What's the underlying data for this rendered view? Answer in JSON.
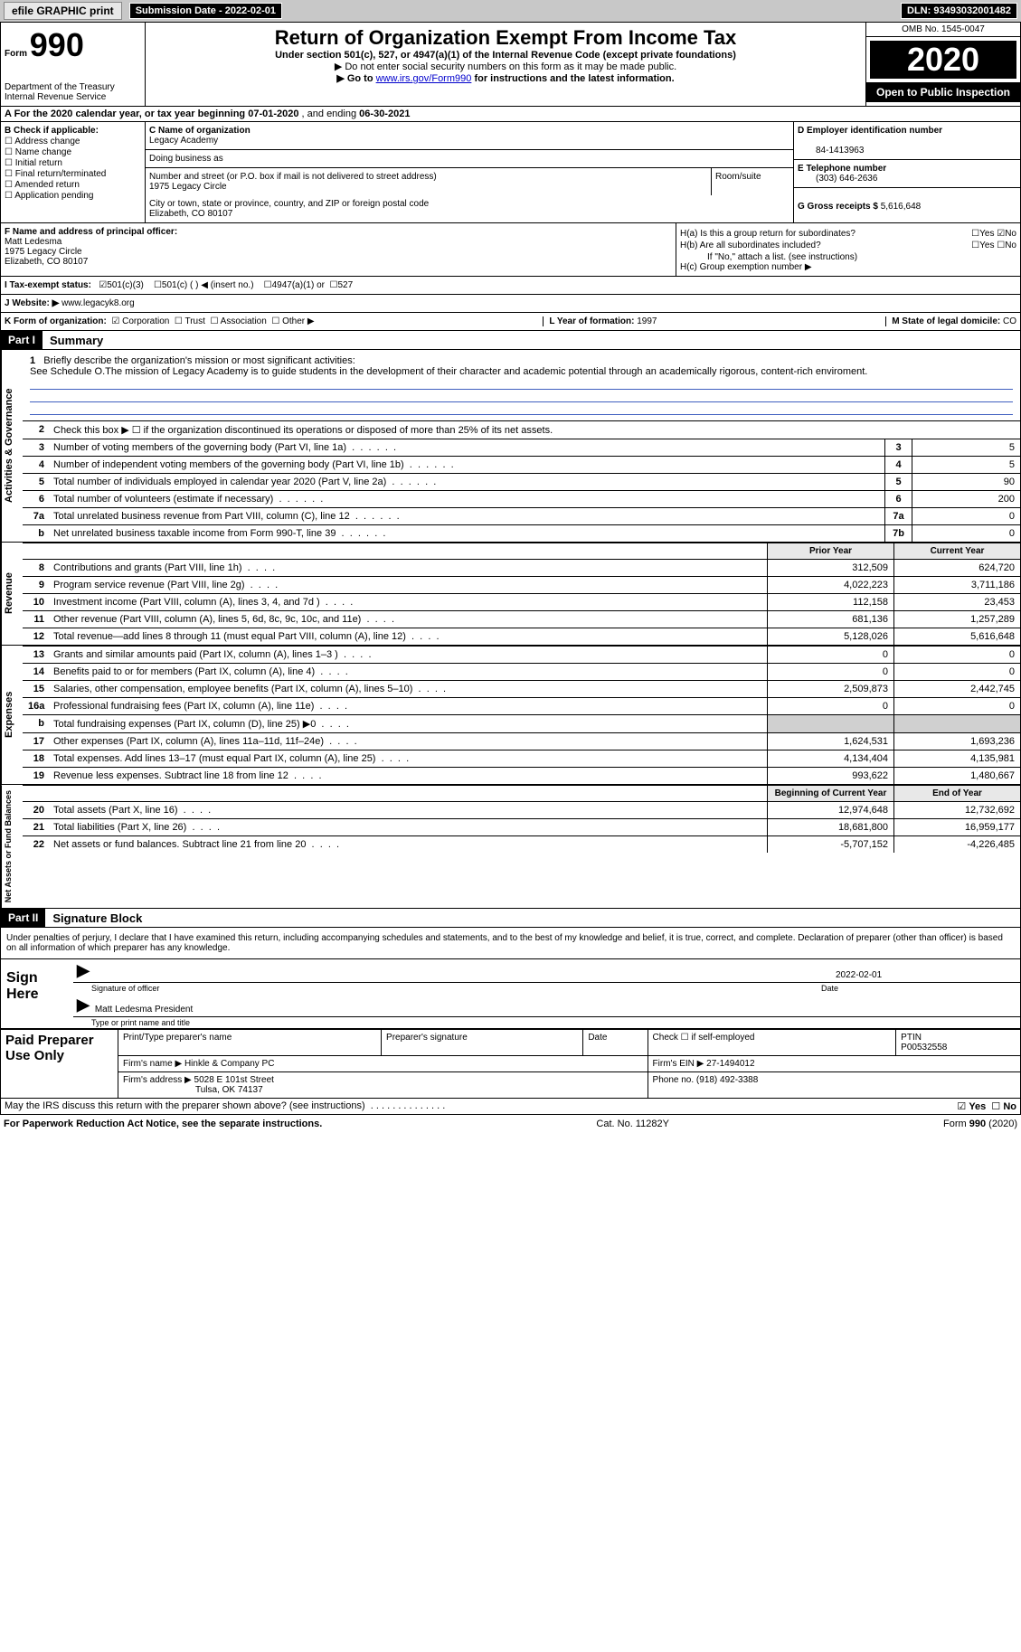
{
  "top": {
    "efile": "efile GRAPHIC print",
    "sub_label": "Submission Date - 2022-02-01",
    "dln": "DLN: 93493032001482"
  },
  "header": {
    "form_label": "Form",
    "form_num": "990",
    "dept": "Department of the Treasury",
    "irs": "Internal Revenue Service",
    "title": "Return of Organization Exempt From Income Tax",
    "subtitle": "Under section 501(c), 527, or 4947(a)(1) of the Internal Revenue Code (except private foundations)",
    "line1": "▶ Do not enter social security numbers on this form as it may be made public.",
    "line2_pre": "▶ Go to ",
    "line2_link": "www.irs.gov/Form990",
    "line2_post": " for instructions and the latest information.",
    "omb": "OMB No. 1545-0047",
    "year": "2020",
    "open": "Open to Public Inspection"
  },
  "rowA": {
    "text_pre": "A For the 2020 calendar year, or tax year beginning ",
    "begin": "07-01-2020",
    "mid": " , and ending ",
    "end": "06-30-2021"
  },
  "B": {
    "label": "B Check if applicable:",
    "opts": [
      "Address change",
      "Name change",
      "Initial return",
      "Final return/terminated",
      "Amended return",
      "Application pending"
    ]
  },
  "C": {
    "name_lbl": "C Name of organization",
    "name": "Legacy Academy",
    "dba_lbl": "Doing business as",
    "dba": "",
    "street_lbl": "Number and street (or P.O. box if mail is not delivered to street address)",
    "street": "1975 Legacy Circle",
    "room_lbl": "Room/suite",
    "city_lbl": "City or town, state or province, country, and ZIP or foreign postal code",
    "city": "Elizabeth, CO  80107"
  },
  "D": {
    "lbl": "D Employer identification number",
    "val": "84-1413963"
  },
  "E": {
    "lbl": "E Telephone number",
    "val": "(303) 646-2636"
  },
  "G": {
    "lbl": "G Gross receipts $ ",
    "val": "5,616,648"
  },
  "F": {
    "lbl": "F Name and address of principal officer:",
    "name": "Matt Ledesma",
    "street": "1975 Legacy Circle",
    "city": "Elizabeth, CO  80107"
  },
  "H": {
    "a": "H(a)  Is this a group return for subordinates?",
    "a_yes": "Yes",
    "a_no": "No",
    "b": "H(b)  Are all subordinates included?",
    "b_yes": "Yes",
    "b_no": "No",
    "b_note": "If \"No,\" attach a list. (see instructions)",
    "c": "H(c)  Group exemption number ▶"
  },
  "I": {
    "lbl": "I  Tax-exempt status:",
    "o1": "501(c)(3)",
    "o2": "501(c) (  ) ◀ (insert no.)",
    "o3": "4947(a)(1) or",
    "o4": "527"
  },
  "J": {
    "lbl": "J  Website: ▶ ",
    "val": "www.legacyk8.org"
  },
  "K": {
    "lbl": "K Form of organization:",
    "o1": "Corporation",
    "o2": "Trust",
    "o3": "Association",
    "o4": "Other ▶"
  },
  "L": {
    "lbl": "L Year of formation: ",
    "val": "1997"
  },
  "M": {
    "lbl": "M State of legal domicile: ",
    "val": "CO"
  },
  "part1": {
    "hdr": "Part I",
    "title": "Summary"
  },
  "mission": {
    "lbl": "Briefly describe the organization's mission or most significant activities:",
    "text": "See Schedule O.The mission of Legacy Academy is to guide students in the development of their character and academic potential through an academically rigorous, content-rich enviroment."
  },
  "lines_gov": [
    {
      "n": "2",
      "t": "Check this box ▶ ☐ if the organization discontinued its operations or disposed of more than 25% of its net assets."
    },
    {
      "n": "3",
      "t": "Number of voting members of the governing body (Part VI, line 1a)",
      "box": "3",
      "v": "5"
    },
    {
      "n": "4",
      "t": "Number of independent voting members of the governing body (Part VI, line 1b)",
      "box": "4",
      "v": "5"
    },
    {
      "n": "5",
      "t": "Total number of individuals employed in calendar year 2020 (Part V, line 2a)",
      "box": "5",
      "v": "90"
    },
    {
      "n": "6",
      "t": "Total number of volunteers (estimate if necessary)",
      "box": "6",
      "v": "200"
    },
    {
      "n": "7a",
      "t": "Total unrelated business revenue from Part VIII, column (C), line 12",
      "box": "7a",
      "v": "0"
    },
    {
      "n": "b",
      "t": "Net unrelated business taxable income from Form 990-T, line 39",
      "box": "7b",
      "v": "0"
    }
  ],
  "col_hdrs": {
    "prior": "Prior Year",
    "current": "Current Year"
  },
  "revenue": [
    {
      "n": "8",
      "t": "Contributions and grants (Part VIII, line 1h)",
      "p": "312,509",
      "c": "624,720"
    },
    {
      "n": "9",
      "t": "Program service revenue (Part VIII, line 2g)",
      "p": "4,022,223",
      "c": "3,711,186"
    },
    {
      "n": "10",
      "t": "Investment income (Part VIII, column (A), lines 3, 4, and 7d )",
      "p": "112,158",
      "c": "23,453"
    },
    {
      "n": "11",
      "t": "Other revenue (Part VIII, column (A), lines 5, 6d, 8c, 9c, 10c, and 11e)",
      "p": "681,136",
      "c": "1,257,289"
    },
    {
      "n": "12",
      "t": "Total revenue—add lines 8 through 11 (must equal Part VIII, column (A), line 12)",
      "p": "5,128,026",
      "c": "5,616,648"
    }
  ],
  "expenses": [
    {
      "n": "13",
      "t": "Grants and similar amounts paid (Part IX, column (A), lines 1–3 )",
      "p": "0",
      "c": "0"
    },
    {
      "n": "14",
      "t": "Benefits paid to or for members (Part IX, column (A), line 4)",
      "p": "0",
      "c": "0"
    },
    {
      "n": "15",
      "t": "Salaries, other compensation, employee benefits (Part IX, column (A), lines 5–10)",
      "p": "2,509,873",
      "c": "2,442,745"
    },
    {
      "n": "16a",
      "t": "Professional fundraising fees (Part IX, column (A), line 11e)",
      "p": "0",
      "c": "0"
    },
    {
      "n": "b",
      "t": "Total fundraising expenses (Part IX, column (D), line 25) ▶0",
      "p": "",
      "c": "",
      "shaded": true
    },
    {
      "n": "17",
      "t": "Other expenses (Part IX, column (A), lines 11a–11d, 11f–24e)",
      "p": "1,624,531",
      "c": "1,693,236"
    },
    {
      "n": "18",
      "t": "Total expenses. Add lines 13–17 (must equal Part IX, column (A), line 25)",
      "p": "4,134,404",
      "c": "4,135,981"
    },
    {
      "n": "19",
      "t": "Revenue less expenses. Subtract line 18 from line 12",
      "p": "993,622",
      "c": "1,480,667"
    }
  ],
  "net_hdrs": {
    "begin": "Beginning of Current Year",
    "end": "End of Year"
  },
  "netassets": [
    {
      "n": "20",
      "t": "Total assets (Part X, line 16)",
      "p": "12,974,648",
      "c": "12,732,692"
    },
    {
      "n": "21",
      "t": "Total liabilities (Part X, line 26)",
      "p": "18,681,800",
      "c": "16,959,177"
    },
    {
      "n": "22",
      "t": "Net assets or fund balances. Subtract line 21 from line 20",
      "p": "-5,707,152",
      "c": "-4,226,485"
    }
  ],
  "tabs": {
    "gov": "Activities & Governance",
    "rev": "Revenue",
    "exp": "Expenses",
    "net": "Net Assets or Fund Balances"
  },
  "part2": {
    "hdr": "Part II",
    "title": "Signature Block"
  },
  "sig": {
    "intro": "Under penalties of perjury, I declare that I have examined this return, including accompanying schedules and statements, and to the best of my knowledge and belief, it is true, correct, and complete. Declaration of preparer (other than officer) is based on all information of which preparer has any knowledge.",
    "sign_here": "Sign Here",
    "sig_officer": "Signature of officer",
    "date_lbl": "Date",
    "date": "2022-02-01",
    "name_title": "Matt Ledesma  President",
    "name_title_lbl": "Type or print name and title"
  },
  "prep": {
    "left": "Paid Preparer Use Only",
    "h1": "Print/Type preparer's name",
    "h2": "Preparer's signature",
    "h3": "Date",
    "h4": "Check ☐ if self-employed",
    "h5_lbl": "PTIN",
    "h5": "P00532558",
    "firm_lbl": "Firm's name   ▶ ",
    "firm": "Hinkle & Company PC",
    "ein_lbl": "Firm's EIN ▶ ",
    "ein": "27-1494012",
    "addr_lbl": "Firm's address ▶ ",
    "addr1": "5028 E 101st Street",
    "addr2": "Tulsa, OK  74137",
    "phone_lbl": "Phone no. ",
    "phone": "(918) 492-3388"
  },
  "discuss": {
    "q": "May the IRS discuss this return with the preparer shown above? (see instructions)",
    "yes": "Yes",
    "no": "No"
  },
  "footer": {
    "left": "For Paperwork Reduction Act Notice, see the separate instructions.",
    "mid": "Cat. No. 11282Y",
    "right": "Form 990 (2020)"
  }
}
